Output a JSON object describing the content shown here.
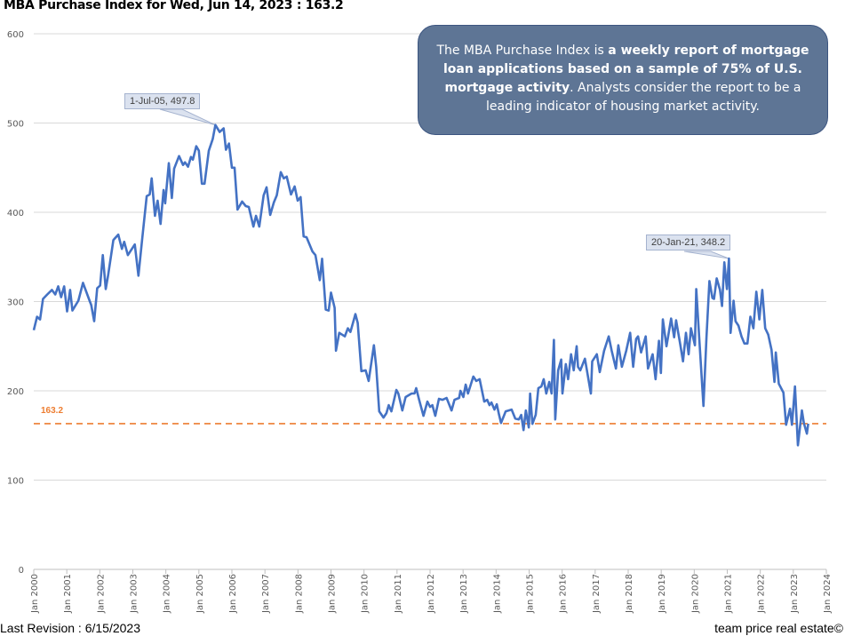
{
  "title": "MBA Purchase Index for Wed, Jun 14, 2023 : 163.2",
  "info_box": {
    "part1": "The MBA Purchase Index is ",
    "bold": "a weekly report of mortgage loan applications based on a sample of 75% of U.S. mortgage activity",
    "part2": ". Analysts consider the report to be a leading indicator of housing market activity."
  },
  "footer": {
    "revision": "Last Revision : 6/15/2023",
    "brand": "team price real estate©"
  },
  "colors": {
    "series": "#4472c4",
    "reference": "#ed7d31",
    "grid": "#d9d9d9",
    "info_box": "#5e7595"
  },
  "chart_data": {
    "type": "line",
    "title": "MBA Purchase Index for Wed, Jun 14, 2023 : 163.2",
    "xlabel": "",
    "ylabel": "",
    "xlim": [
      2000,
      2024
    ],
    "ylim": [
      0,
      600
    ],
    "grid": true,
    "y_ticks": [
      "0",
      "100",
      "200",
      "300",
      "400",
      "500",
      "600"
    ],
    "x_ticks": [
      "Jan 2000",
      "Jan 2001",
      "Jan 2002",
      "Jan 2003",
      "Jan 2004",
      "Jan 2005",
      "Jan 2006",
      "Jan 2007",
      "Jan 2008",
      "Jan 2009",
      "Jan 2010",
      "Jan 2011",
      "Jan 2012",
      "Jan 2013",
      "Jan 2014",
      "Jan 2015",
      "Jan 2016",
      "Jan 2017",
      "Jan 2018",
      "Jan 2019",
      "Jan 2020",
      "Jan 2021",
      "Jan 2022",
      "Jan 2023",
      "Jan 2024"
    ],
    "reference_line": {
      "value": 163.2,
      "label": "163.2"
    },
    "annotations": [
      {
        "label": "1-Jul-05, 497.8",
        "x": 2005.5,
        "y": 497.8
      },
      {
        "label": "20-Jan-21, 348.2",
        "x": 2021.05,
        "y": 348.2
      }
    ],
    "series": [
      {
        "x": [
          2000.0,
          2000.1,
          2000.19,
          2000.28,
          2000.41,
          2000.55,
          2000.65,
          2000.74,
          2000.83,
          2000.92,
          2001.01,
          2001.1,
          2001.17,
          2001.35,
          2001.49,
          2001.69,
          2001.74,
          2001.83,
          2001.92,
          2002.01,
          2002.09,
          2002.18,
          2002.25,
          2002.41,
          2002.56,
          2002.67,
          2002.74,
          2002.85,
          2003.06,
          2003.17,
          2003.28,
          2003.42,
          2003.51,
          2003.57,
          2003.67,
          2003.75,
          2003.84,
          2003.93,
          2003.98,
          2004.09,
          2004.18,
          2004.25,
          2004.4,
          2004.52,
          2004.58,
          2004.67,
          2004.76,
          2004.82,
          2004.92,
          2005.0,
          2005.09,
          2005.17,
          2005.3,
          2005.42,
          2005.5,
          2005.63,
          2005.75,
          2005.82,
          2005.91,
          2006.0,
          2006.08,
          2006.17,
          2006.31,
          2006.42,
          2006.51,
          2006.65,
          2006.73,
          2006.83,
          2006.96,
          2007.05,
          2007.16,
          2007.27,
          2007.36,
          2007.48,
          2007.57,
          2007.66,
          2007.79,
          2007.9,
          2007.99,
          2008.08,
          2008.17,
          2008.26,
          2008.44,
          2008.53,
          2008.66,
          2008.73,
          2008.84,
          2008.93,
          2009.0,
          2009.11,
          2009.15,
          2009.25,
          2009.42,
          2009.51,
          2009.59,
          2009.74,
          2009.81,
          2009.92,
          2010.05,
          2010.14,
          2010.3,
          2010.37,
          2010.46,
          2010.59,
          2010.68,
          2010.75,
          2010.83,
          2010.98,
          2011.04,
          2011.16,
          2011.26,
          2011.44,
          2011.53,
          2011.58,
          2011.67,
          2011.8,
          2011.92,
          2012.0,
          2012.07,
          2012.16,
          2012.27,
          2012.38,
          2012.5,
          2012.65,
          2012.74,
          2012.88,
          2012.92,
          2013.01,
          2013.08,
          2013.15,
          2013.31,
          2013.4,
          2013.5,
          2013.64,
          2013.73,
          2013.8,
          2013.86,
          2013.95,
          2014.02,
          2014.09,
          2014.15,
          2014.29,
          2014.47,
          2014.58,
          2014.69,
          2014.76,
          2014.83,
          2014.9,
          2014.99,
          2015.03,
          2015.1,
          2015.2,
          2015.28,
          2015.37,
          2015.44,
          2015.52,
          2015.61,
          2015.68,
          2015.75,
          2015.79,
          2015.88,
          2015.97,
          2016.01,
          2016.11,
          2016.18,
          2016.27,
          2016.35,
          2016.44,
          2016.48,
          2016.55,
          2016.69,
          2016.87,
          2016.91,
          2017.05,
          2017.14,
          2017.27,
          2017.41,
          2017.5,
          2017.63,
          2017.7,
          2017.81,
          2017.94,
          2018.06,
          2018.15,
          2018.24,
          2018.3,
          2018.39,
          2018.53,
          2018.6,
          2018.74,
          2018.83,
          2018.93,
          2018.99,
          2019.05,
          2019.16,
          2019.3,
          2019.39,
          2019.45,
          2019.57,
          2019.66,
          2019.75,
          2019.83,
          2019.9,
          2020.02,
          2020.06,
          2020.15,
          2020.28,
          2020.37,
          2020.46,
          2020.55,
          2020.6,
          2020.68,
          2020.78,
          2020.84,
          2020.91,
          2020.99,
          2021.05,
          2021.1,
          2021.19,
          2021.25,
          2021.34,
          2021.43,
          2021.52,
          2021.61,
          2021.7,
          2021.79,
          2021.88,
          2021.97,
          2022.06,
          2022.15,
          2022.24,
          2022.34,
          2022.43,
          2022.47,
          2022.56,
          2022.7,
          2022.78,
          2022.9,
          2022.96,
          2023.05,
          2023.14,
          2023.26,
          2023.32,
          2023.41,
          2023.45
        ],
        "values": [
          268,
          283,
          280,
          303,
          308,
          313,
          308,
          317,
          305,
          317,
          289,
          313,
          290,
          301,
          321,
          301,
          296,
          278,
          315,
          318,
          352,
          314,
          329,
          369,
          375,
          359,
          367,
          352,
          364,
          329,
          369,
          418,
          420,
          438,
          396,
          413,
          387,
          425,
          410,
          455,
          416,
          449,
          463,
          453,
          456,
          451,
          462,
          459,
          474,
          469,
          432,
          432,
          469,
          482,
          497.8,
          490,
          494,
          470,
          477,
          450,
          450,
          403,
          412,
          407,
          406,
          384,
          396,
          384,
          419,
          428,
          397,
          411,
          419,
          445,
          438,
          440,
          420,
          429,
          413,
          417,
          373,
          372,
          356,
          352,
          324,
          348,
          291,
          290,
          310,
          293,
          245,
          265,
          261,
          270,
          266,
          286,
          276,
          222,
          223,
          211,
          251,
          227,
          177,
          170,
          175,
          184,
          177,
          201,
          197,
          178,
          193,
          197,
          197,
          203,
          190,
          172,
          188,
          182,
          184,
          172,
          191,
          190,
          192,
          178,
          190,
          192,
          200,
          193,
          207,
          197,
          216,
          211,
          213,
          188,
          190,
          184,
          187,
          179,
          185,
          173,
          164,
          177,
          179,
          169,
          168,
          173,
          156,
          178,
          159,
          197,
          163,
          173,
          203,
          205,
          213,
          197,
          210,
          197,
          257,
          168,
          223,
          235,
          197,
          230,
          213,
          241,
          223,
          250,
          227,
          223,
          236,
          197,
          233,
          241,
          221,
          245,
          261,
          245,
          225,
          251,
          227,
          245,
          265,
          227,
          258,
          261,
          243,
          261,
          225,
          241,
          213,
          256,
          220,
          280,
          250,
          281,
          260,
          279,
          253,
          233,
          265,
          241,
          270,
          251,
          314,
          260,
          183,
          260,
          323,
          304,
          303,
          326,
          313,
          295,
          344,
          314,
          348.2,
          265,
          301,
          278,
          273,
          261,
          253,
          253,
          283,
          270,
          311,
          280,
          313,
          270,
          263,
          246,
          210,
          243,
          208,
          198,
          162,
          180,
          162,
          205,
          139,
          178,
          164,
          152,
          163.2
        ]
      }
    ]
  }
}
